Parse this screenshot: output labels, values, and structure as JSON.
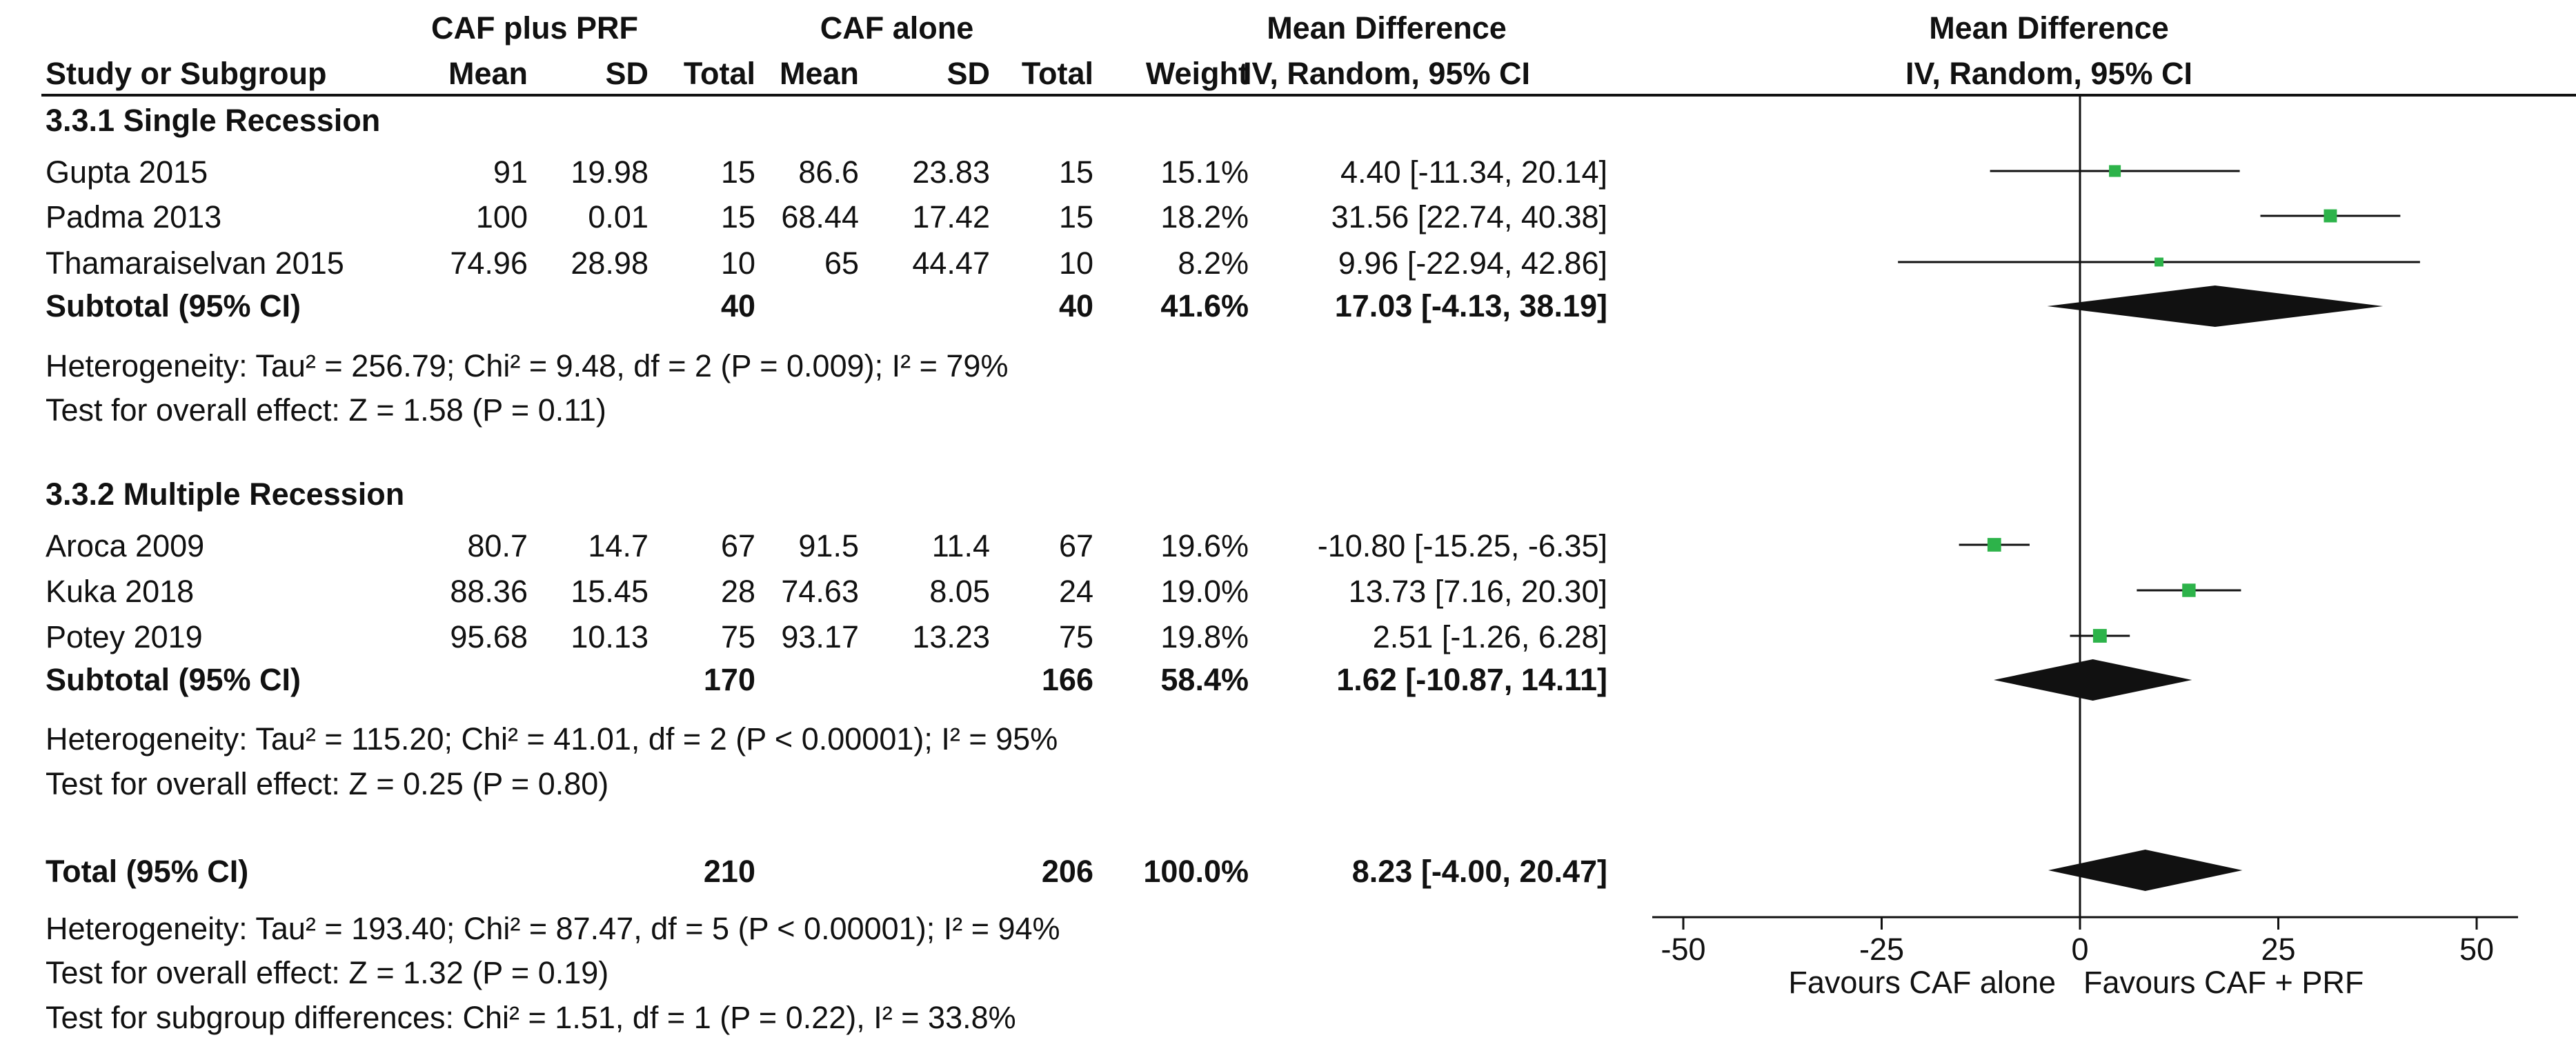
{
  "header": {
    "group_exp": "CAF plus PRF",
    "group_ctrl": "CAF alone",
    "effect_title": "Mean Difference",
    "plot_title": "Mean Difference",
    "plot_method": "IV, Random, 95% CI",
    "columns": {
      "study": "Study or Subgroup",
      "mean_exp": "Mean",
      "sd_exp": "SD",
      "total_exp": "Total",
      "mean_ctrl": "Mean",
      "sd_ctrl": "SD",
      "total_ctrl": "Total",
      "weight": "Weight",
      "ci": "IV, Random, 95% CI"
    }
  },
  "subgroups": [
    {
      "title": "3.3.1 Single Recession",
      "studies": [
        {
          "name": "Gupta 2015",
          "mean_exp": "91",
          "sd_exp": "19.98",
          "total_exp": "15",
          "mean_ctrl": "86.6",
          "sd_ctrl": "23.83",
          "total_ctrl": "15",
          "weight": "15.1%",
          "ci_text": "4.40 [-11.34, 20.14]"
        },
        {
          "name": "Padma 2013",
          "mean_exp": "100",
          "sd_exp": "0.01",
          "total_exp": "15",
          "mean_ctrl": "68.44",
          "sd_ctrl": "17.42",
          "total_ctrl": "15",
          "weight": "18.2%",
          "ci_text": "31.56 [22.74, 40.38]"
        },
        {
          "name": "Thamaraiselvan 2015",
          "mean_exp": "74.96",
          "sd_exp": "28.98",
          "total_exp": "10",
          "mean_ctrl": "65",
          "sd_ctrl": "44.47",
          "total_ctrl": "10",
          "weight": "8.2%",
          "ci_text": "9.96 [-22.94, 42.86]"
        }
      ],
      "subtotal": {
        "label": "Subtotal (95% CI)",
        "total_exp": "40",
        "total_ctrl": "40",
        "weight": "41.6%",
        "ci_text": "17.03 [-4.13, 38.19]"
      },
      "heterogeneity": "Heterogeneity: Tau² = 256.79; Chi² = 9.48, df = 2 (P = 0.009); I² = 79%",
      "overall": "Test for overall effect: Z = 1.58 (P = 0.11)"
    },
    {
      "title": "3.3.2 Multiple Recession",
      "studies": [
        {
          "name": "Aroca 2009",
          "mean_exp": "80.7",
          "sd_exp": "14.7",
          "total_exp": "67",
          "mean_ctrl": "91.5",
          "sd_ctrl": "11.4",
          "total_ctrl": "67",
          "weight": "19.6%",
          "ci_text": "-10.80 [-15.25, -6.35]"
        },
        {
          "name": "Kuka 2018",
          "mean_exp": "88.36",
          "sd_exp": "15.45",
          "total_exp": "28",
          "mean_ctrl": "74.63",
          "sd_ctrl": "8.05",
          "total_ctrl": "24",
          "weight": "19.0%",
          "ci_text": "13.73 [7.16, 20.30]"
        },
        {
          "name": "Potey 2019",
          "mean_exp": "95.68",
          "sd_exp": "10.13",
          "total_exp": "75",
          "mean_ctrl": "93.17",
          "sd_ctrl": "13.23",
          "total_ctrl": "75",
          "weight": "19.8%",
          "ci_text": "2.51 [-1.26, 6.28]"
        }
      ],
      "subtotal": {
        "label": "Subtotal (95% CI)",
        "total_exp": "170",
        "total_ctrl": "166",
        "weight": "58.4%",
        "ci_text": "1.62 [-10.87, 14.11]"
      },
      "heterogeneity": "Heterogeneity: Tau² = 115.20; Chi² = 41.01, df = 2 (P < 0.00001); I² = 95%",
      "overall": "Test for overall effect: Z = 0.25 (P = 0.80)"
    }
  ],
  "total": {
    "label": "Total (95% CI)",
    "total_exp": "210",
    "total_ctrl": "206",
    "weight": "100.0%",
    "ci_text": "8.23 [-4.00, 20.47]",
    "heterogeneity": "Heterogeneity: Tau² = 193.40; Chi² = 87.47, df = 5 (P < 0.00001); I² = 94%",
    "overall": "Test for overall effect: Z = 1.32 (P = 0.19)",
    "subgroup_diff": "Test for subgroup differences: Chi² = 1.51, df = 1 (P = 0.22), I² = 33.8%"
  },
  "colors": {
    "marker": "#2db34a",
    "ink": "#111111"
  },
  "chart_data": {
    "type": "forest",
    "title": "Mean Difference",
    "xlabel": "IV, Random, 95% CI",
    "xlim": [
      -50,
      50
    ],
    "ticks": [
      -50,
      -25,
      0,
      25,
      50
    ],
    "tick_labels": [
      "-50",
      "-25",
      "0",
      "25",
      "50"
    ],
    "favours_left": "Favours CAF alone",
    "favours_right": "Favours CAF + PRF",
    "studies": [
      {
        "name": "Gupta 2015",
        "md": 4.4,
        "lo": -11.34,
        "hi": 20.14,
        "weight": 15.1
      },
      {
        "name": "Padma 2013",
        "md": 31.56,
        "lo": 22.74,
        "hi": 40.38,
        "weight": 18.2
      },
      {
        "name": "Thamaraiselvan 2015",
        "md": 9.96,
        "lo": -22.94,
        "hi": 42.86,
        "weight": 8.2
      },
      {
        "name": "Aroca 2009",
        "md": -10.8,
        "lo": -15.25,
        "hi": -6.35,
        "weight": 19.6
      },
      {
        "name": "Kuka 2018",
        "md": 13.73,
        "lo": 7.16,
        "hi": 20.3,
        "weight": 19.0
      },
      {
        "name": "Potey 2019",
        "md": 2.51,
        "lo": -1.26,
        "hi": 6.28,
        "weight": 19.8
      }
    ],
    "pooled": [
      {
        "name": "Subtotal 3.3.1 Single Recession",
        "md": 17.03,
        "lo": -4.13,
        "hi": 38.19
      },
      {
        "name": "Subtotal 3.3.2 Multiple Recession",
        "md": 1.62,
        "lo": -10.87,
        "hi": 14.11
      },
      {
        "name": "Total",
        "md": 8.23,
        "lo": -4.0,
        "hi": 20.47
      }
    ]
  }
}
